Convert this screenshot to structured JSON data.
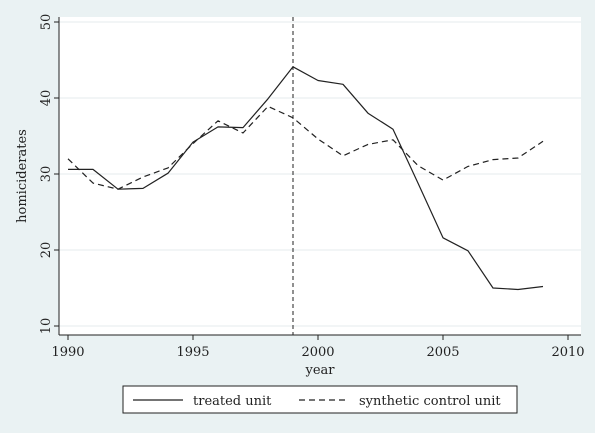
{
  "chart_data": {
    "type": "line",
    "xlabel": "year",
    "ylabel": "homiciderates",
    "xlim": [
      1990,
      2010
    ],
    "ylim": [
      10,
      50
    ],
    "xticks": [
      1990,
      1995,
      2000,
      2005,
      2010
    ],
    "yticks": [
      10,
      20,
      30,
      40,
      50
    ],
    "grid": "horizontal",
    "legend_position": "bottom",
    "reference_line": {
      "x": 1999,
      "style": "dashed"
    },
    "series": [
      {
        "name": "treated unit",
        "style": "solid",
        "x": [
          1990,
          1991,
          1992,
          1993,
          1994,
          1995,
          1996,
          1997,
          1998,
          1999,
          2000,
          2001,
          2002,
          2003,
          2004,
          2005,
          2006,
          2007,
          2008,
          2009
        ],
        "values": [
          30.6,
          30.6,
          28.0,
          28.1,
          30.1,
          34.2,
          36.2,
          36.1,
          39.9,
          44.1,
          42.3,
          41.8,
          38.0,
          35.9,
          28.8,
          21.6,
          19.9,
          15.0,
          14.8,
          15.2
        ]
      },
      {
        "name": "synthetic control unit",
        "style": "dashed",
        "x": [
          1990,
          1991,
          1992,
          1993,
          1994,
          1995,
          1996,
          1997,
          1998,
          1999,
          2000,
          2001,
          2002,
          2003,
          2004,
          2005,
          2006,
          2007,
          2008,
          2009
        ],
        "values": [
          32.0,
          28.8,
          28.0,
          29.6,
          30.8,
          34.0,
          37.0,
          35.4,
          38.9,
          37.4,
          34.6,
          32.4,
          33.9,
          34.5,
          31.1,
          29.2,
          31.0,
          31.9,
          32.1,
          34.3
        ]
      }
    ]
  }
}
